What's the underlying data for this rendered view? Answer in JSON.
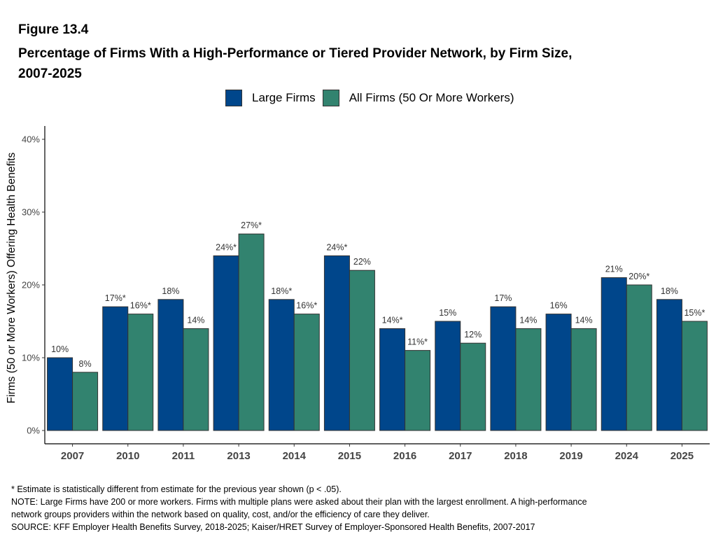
{
  "figure_label": "Figure 13.4",
  "title_line1": "Percentage of Firms With a High-Performance or Tiered Provider Network, by Firm Size,",
  "title_line2": "2007-2025",
  "colors": {
    "large": "#00468B",
    "all": "#32836F",
    "bar_border": "#333333"
  },
  "chart_data": {
    "type": "bar",
    "categories": [
      "2007",
      "2010",
      "2011",
      "2013",
      "2014",
      "2015",
      "2016",
      "2017",
      "2018",
      "2019",
      "2024",
      "2025"
    ],
    "series": [
      {
        "name": "Large Firms",
        "values": [
          10,
          17,
          18,
          24,
          18,
          24,
          14,
          15,
          17,
          16,
          21,
          18
        ],
        "labels": [
          "10%",
          "17%*",
          "18%",
          "24%*",
          "18%*",
          "24%*",
          "14%*",
          "15%",
          "17%",
          "16%",
          "21%",
          "18%"
        ]
      },
      {
        "name": "All Firms (50 Or More Workers)",
        "values": [
          8,
          16,
          14,
          27,
          16,
          22,
          11,
          12,
          14,
          14,
          20,
          15
        ],
        "labels": [
          "8%",
          "16%*",
          "14%",
          "27%*",
          "16%*",
          "22%",
          "11%*",
          "12%",
          "14%",
          "14%",
          "20%*",
          "15%*"
        ]
      }
    ],
    "ylabel": "Firms (50 or More Workers) Offering Health Benefits",
    "xlabel": "",
    "ylim": [
      0,
      40
    ],
    "yticks": [
      0,
      10,
      20,
      30,
      40
    ],
    "ytick_labels": [
      "0%",
      "10%",
      "20%",
      "30%",
      "40%"
    ],
    "grid": false,
    "legend_position": "top-center"
  },
  "notes": [
    "* Estimate is statistically different from estimate for the previous year shown (p < .05).",
    "NOTE: Large Firms have 200 or more workers.  Firms with multiple plans were asked about their plan with the largest enrollment.  A high-performance",
    "network groups providers within the network based on quality, cost, and/or the efficiency of care they deliver.",
    "SOURCE: KFF Employer Health Benefits Survey, 2018-2025; Kaiser/HRET Survey of Employer-Sponsored Health Benefits, 2007-2017"
  ]
}
